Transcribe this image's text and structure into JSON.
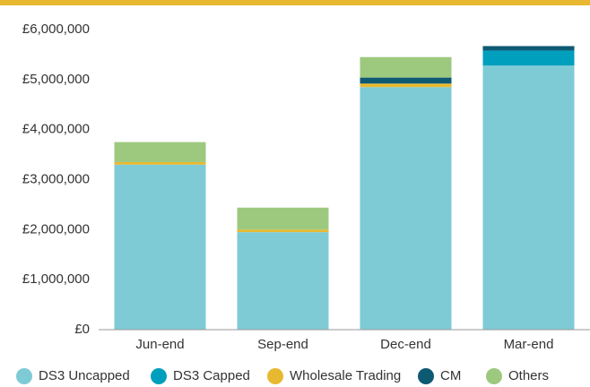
{
  "chart_data": {
    "type": "stacked_bar",
    "categories": [
      "Jun-end",
      "Sep-end",
      "Dec-end",
      "Mar-end"
    ],
    "series": [
      {
        "name": "DS3 Uncapped",
        "color": "#7ecbd6",
        "values": [
          3300000,
          1950000,
          4850000,
          5280000
        ]
      },
      {
        "name": "DS3 Capped",
        "color": "#009fbe",
        "values": [
          0,
          0,
          0,
          300000
        ]
      },
      {
        "name": "Wholesale Trading",
        "color": "#e8b930",
        "values": [
          50000,
          50000,
          70000,
          0
        ]
      },
      {
        "name": "CM",
        "color": "#0f5a73",
        "values": [
          0,
          0,
          120000,
          90000
        ]
      },
      {
        "name": "Others",
        "color": "#9dc97f",
        "values": [
          400000,
          440000,
          410000,
          0
        ]
      }
    ],
    "ylim": [
      0,
      6000000
    ],
    "yticks": [
      {
        "value": 0,
        "label": "£0"
      },
      {
        "value": 1000000,
        "label": "£1,000,000"
      },
      {
        "value": 2000000,
        "label": "£2,000,000"
      },
      {
        "value": 3000000,
        "label": "£3,000,000"
      },
      {
        "value": 4000000,
        "label": "£4,000,000"
      },
      {
        "value": 5000000,
        "label": "£5,000,000"
      },
      {
        "value": 6000000,
        "label": "£6,000,000"
      }
    ],
    "grid": false,
    "legend": "bottom"
  }
}
